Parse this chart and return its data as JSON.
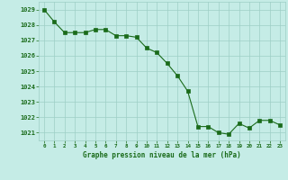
{
  "x": [
    0,
    1,
    2,
    3,
    4,
    5,
    6,
    7,
    8,
    9,
    10,
    11,
    12,
    13,
    14,
    15,
    16,
    17,
    18,
    19,
    20,
    21,
    22,
    23
  ],
  "y": [
    1029.0,
    1028.2,
    1027.5,
    1027.5,
    1027.5,
    1027.7,
    1027.7,
    1027.3,
    1027.3,
    1027.2,
    1026.5,
    1026.2,
    1025.5,
    1024.7,
    1023.7,
    1021.4,
    1021.4,
    1021.0,
    1020.9,
    1021.6,
    1021.3,
    1021.8,
    1021.8,
    1021.5
  ],
  "line_color": "#1a6b1a",
  "marker_color": "#1a6b1a",
  "bg_color": "#c5ece6",
  "grid_color": "#9ecec6",
  "xlabel": "Graphe pression niveau de la mer (hPa)",
  "xlabel_color": "#1a6b1a",
  "tick_color": "#1a6b1a",
  "ylim_min": 1020.5,
  "ylim_max": 1029.5,
  "xtick_labels": [
    "0",
    "1",
    "2",
    "3",
    "4",
    "5",
    "6",
    "7",
    "8",
    "9",
    "10",
    "11",
    "12",
    "13",
    "14",
    "15",
    "16",
    "17",
    "18",
    "19",
    "20",
    "21",
    "22",
    "23"
  ]
}
